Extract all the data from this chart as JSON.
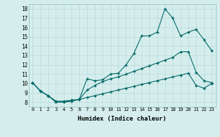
{
  "xlabel": "Humidex (Indice chaleur)",
  "bg_color": "#d5eeed",
  "line_color": "#006666",
  "xlim": [
    -0.5,
    23.5
  ],
  "ylim": [
    7.5,
    18.5
  ],
  "xticks": [
    0,
    1,
    2,
    3,
    4,
    5,
    6,
    7,
    8,
    9,
    10,
    11,
    12,
    13,
    14,
    15,
    16,
    17,
    18,
    19,
    20,
    21,
    22,
    23
  ],
  "yticks": [
    8,
    9,
    10,
    11,
    12,
    13,
    14,
    15,
    16,
    17,
    18
  ],
  "line1_x": [
    0,
    1,
    2,
    3,
    4,
    5,
    6,
    7,
    8,
    9,
    10,
    11,
    12,
    13,
    14,
    15,
    16,
    17,
    18,
    19,
    20,
    21,
    22,
    23
  ],
  "line1_y": [
    10.1,
    9.2,
    8.7,
    8.0,
    8.0,
    8.1,
    8.3,
    10.5,
    10.3,
    10.4,
    11.0,
    11.1,
    12.0,
    13.2,
    15.1,
    15.1,
    15.5,
    18.0,
    17.0,
    15.1,
    15.5,
    15.8,
    14.7,
    13.5
  ],
  "line2_x": [
    0,
    1,
    2,
    3,
    4,
    5,
    6,
    7,
    8,
    9,
    10,
    11,
    12,
    13,
    14,
    15,
    16,
    17,
    18,
    19,
    20,
    21,
    22,
    23
  ],
  "line2_y": [
    10.1,
    9.2,
    8.7,
    8.1,
    8.1,
    8.2,
    8.3,
    9.3,
    9.8,
    10.2,
    10.5,
    10.7,
    11.0,
    11.3,
    11.6,
    11.9,
    12.2,
    12.5,
    12.8,
    13.4,
    13.4,
    11.2,
    10.3,
    10.1
  ],
  "line3_x": [
    0,
    1,
    2,
    3,
    4,
    5,
    6,
    7,
    8,
    9,
    10,
    11,
    12,
    13,
    14,
    15,
    16,
    17,
    18,
    19,
    20,
    21,
    22,
    23
  ],
  "line3_y": [
    10.1,
    9.2,
    8.7,
    8.1,
    8.1,
    8.2,
    8.3,
    8.5,
    8.7,
    8.9,
    9.1,
    9.3,
    9.5,
    9.7,
    9.9,
    10.1,
    10.3,
    10.5,
    10.7,
    10.9,
    11.1,
    9.8,
    9.5,
    10.0
  ]
}
